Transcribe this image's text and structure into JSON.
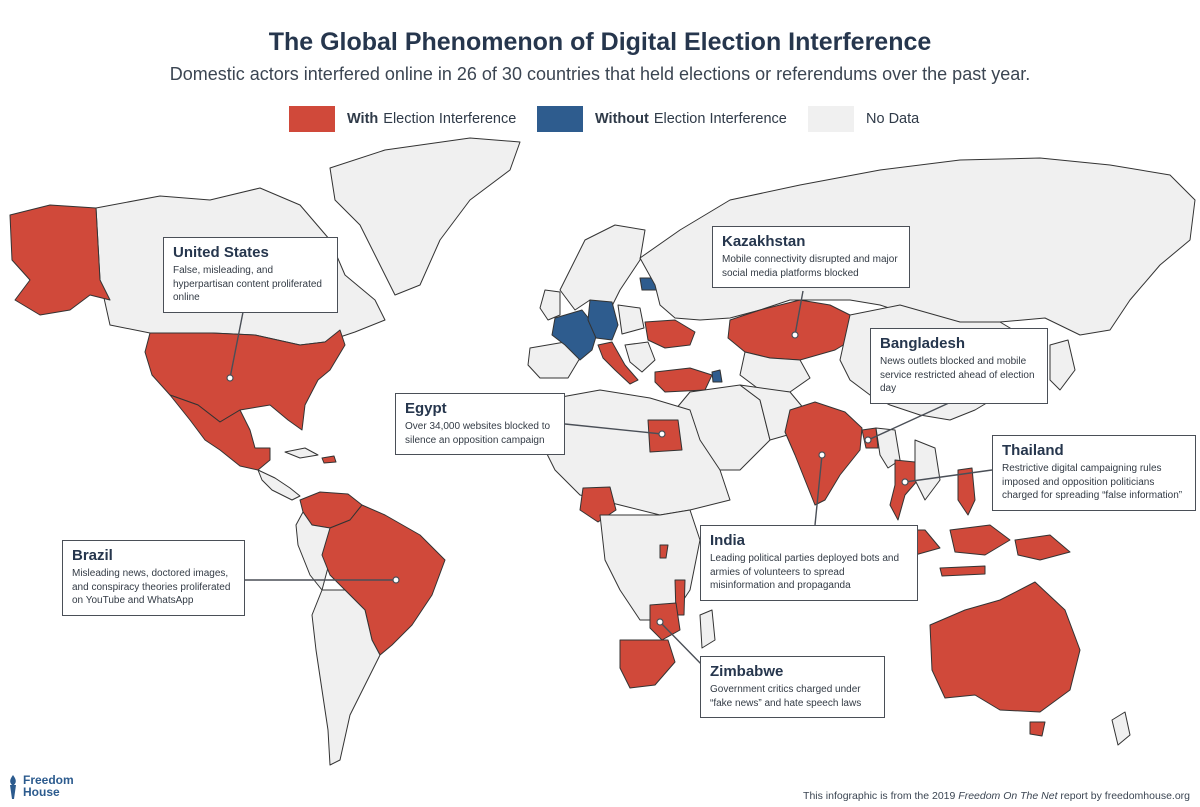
{
  "title": "The Global Phenomenon of Digital Election Interference",
  "subtitle": "Domestic actors interfered online in 26 of 30 countries that held elections or referendums over the past year.",
  "legend": {
    "with": {
      "bold": "With",
      "rest": "Election Interference",
      "color": "#d0493a"
    },
    "without": {
      "bold": "Without",
      "rest": "Election Interference",
      "color": "#2e5c8e"
    },
    "nodata": {
      "label": "No Data",
      "color": "#f0f0f0"
    }
  },
  "callouts": {
    "us": {
      "title": "United States",
      "text": "False, misleading, and hyperpartisan content proliferated online"
    },
    "kazakhstan": {
      "title": "Kazakhstan",
      "text": "Mobile connectivity disrupted and major social media platforms blocked"
    },
    "bangladesh": {
      "title": "Bangladesh",
      "text": "News outlets blocked and mobile service restricted ahead of election day"
    },
    "egypt": {
      "title": "Egypt",
      "text": "Over 34,000 websites blocked to silence an opposition campaign"
    },
    "thailand": {
      "title": "Thailand",
      "text": "Restrictive digital campaigning rules imposed and opposition politicians charged for spreading “false information”"
    },
    "brazil": {
      "title": "Brazil",
      "text": "Misleading news, doctored images, and conspiracy theories proliferated on YouTube and WhatsApp"
    },
    "india": {
      "title": "India",
      "text": "Leading political parties deployed bots and armies of volunteers to spread misinformation and propaganda"
    },
    "zimbabwe": {
      "title": "Zimbabwe",
      "text": "Government critics charged under “fake news” and hate speech laws"
    }
  },
  "footer": {
    "logo_line1": "Freedom",
    "logo_line2": "House",
    "note_prefix": "This infographic is from the 2019",
    "note_report": "Freedom On The Net",
    "note_suffix": "report by freedomhouse.org"
  },
  "colors": {
    "interference": "#d0493a",
    "no_interference": "#2e5c8e",
    "no_data": "#f0f0f0",
    "border": "#333333"
  }
}
